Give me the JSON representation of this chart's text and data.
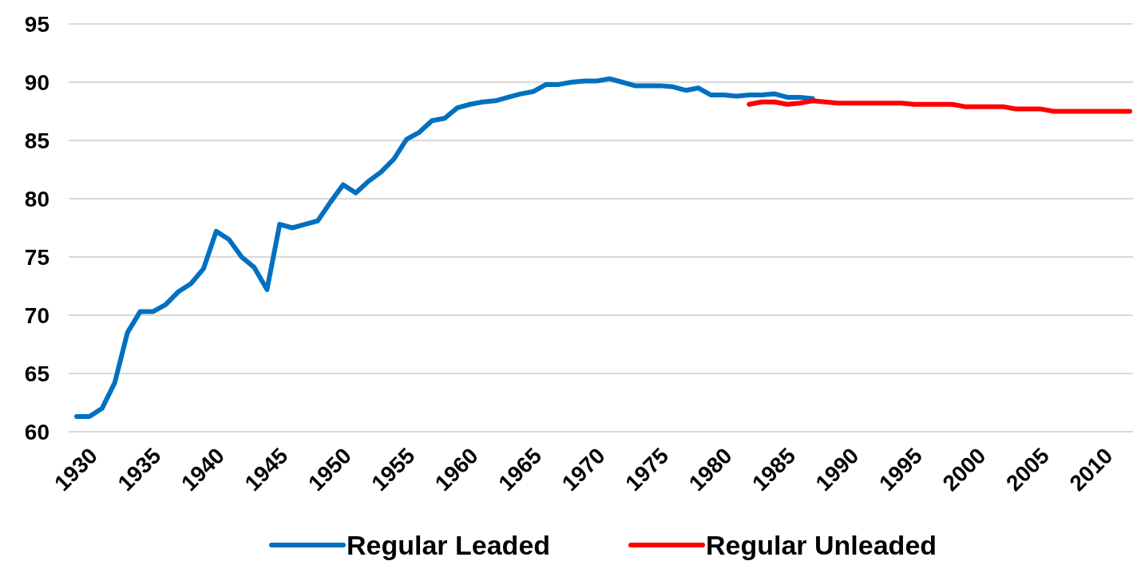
{
  "chart_data": {
    "type": "line",
    "categories": [
      "1930",
      null,
      null,
      null,
      null,
      "1935",
      null,
      null,
      null,
      null,
      "1940",
      null,
      null,
      null,
      null,
      "1945",
      null,
      null,
      null,
      null,
      "1950",
      null,
      null,
      null,
      null,
      "1955",
      null,
      null,
      null,
      null,
      "1960",
      null,
      null,
      null,
      null,
      "1965",
      null,
      null,
      null,
      null,
      "1970",
      null,
      null,
      null,
      null,
      "1975",
      null,
      null,
      null,
      null,
      "1980",
      null,
      null,
      null,
      null,
      "1985",
      null,
      null,
      null,
      null,
      "1990",
      null,
      null,
      null,
      null,
      "1995",
      null,
      null,
      null,
      null,
      "2000",
      null,
      null,
      null,
      null,
      "2005",
      null,
      null,
      null,
      null,
      "2010",
      null,
      null,
      null
    ],
    "series": [
      {
        "name": "Regular Leaded",
        "color": "#0070c0",
        "values": [
          61.3,
          61.3,
          62.0,
          64.2,
          68.5,
          70.3,
          70.3,
          70.9,
          72.0,
          72.7,
          74.0,
          77.2,
          76.5,
          75.0,
          74.1,
          72.2,
          77.8,
          77.5,
          77.8,
          78.1,
          79.7,
          81.2,
          80.5,
          81.5,
          82.3,
          83.4,
          85.1,
          85.7,
          86.7,
          86.9,
          87.8,
          88.1,
          88.3,
          88.4,
          88.7,
          89.0,
          89.2,
          89.8,
          89.8,
          90.0,
          90.1,
          90.1,
          90.3,
          90.0,
          89.7,
          89.7,
          89.7,
          89.6,
          89.3,
          89.5,
          88.9,
          88.9,
          88.8,
          88.9,
          88.9,
          89.0,
          88.7,
          88.7,
          88.6,
          null,
          null,
          null,
          null,
          null,
          null,
          null,
          null,
          null,
          null,
          null,
          null,
          null,
          null,
          null,
          null,
          null,
          null,
          null,
          null,
          null,
          null,
          null,
          null,
          null
        ]
      },
      {
        "name": "Regular Unleaded",
        "color": "#ff0000",
        "values": [
          null,
          null,
          null,
          null,
          null,
          null,
          null,
          null,
          null,
          null,
          null,
          null,
          null,
          null,
          null,
          null,
          null,
          null,
          null,
          null,
          null,
          null,
          null,
          null,
          null,
          null,
          null,
          null,
          null,
          null,
          null,
          null,
          null,
          null,
          null,
          null,
          null,
          null,
          null,
          null,
          null,
          null,
          null,
          null,
          null,
          null,
          null,
          null,
          null,
          null,
          null,
          null,
          null,
          88.1,
          88.3,
          88.3,
          88.1,
          88.2,
          88.4,
          88.3,
          88.2,
          88.2,
          88.2,
          88.2,
          88.2,
          88.2,
          88.1,
          88.1,
          88.1,
          88.1,
          87.9,
          87.9,
          87.9,
          87.9,
          87.7,
          87.7,
          87.7,
          87.5,
          87.5,
          87.5,
          87.5,
          87.5,
          87.5,
          87.5
        ]
      }
    ],
    "ylim": [
      60,
      95
    ],
    "yticks": [
      60,
      65,
      70,
      75,
      80,
      85,
      90,
      95
    ],
    "grid": "y",
    "legend": "bottom"
  }
}
